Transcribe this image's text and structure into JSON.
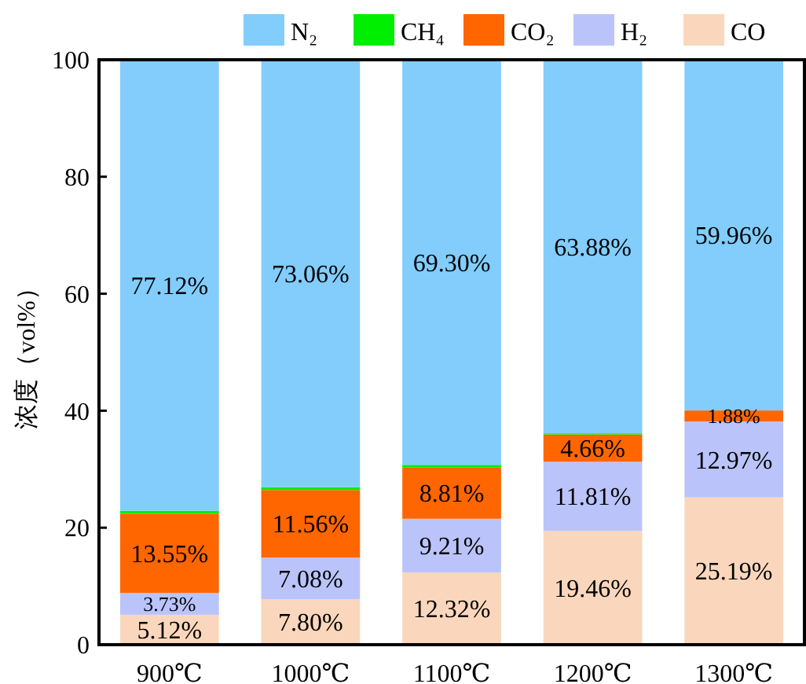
{
  "chart_data": {
    "type": "bar",
    "stacked": true,
    "ylabel": "浓度（vol%）",
    "categories": [
      "900℃",
      "1000℃",
      "1100℃",
      "1200℃",
      "1300℃"
    ],
    "series": [
      {
        "name": "CO",
        "color": "#fad7bc",
        "values": [
          5.12,
          7.8,
          12.32,
          19.46,
          25.19
        ],
        "value_labels": [
          "5.12%",
          "7.80%",
          "12.32%",
          "19.46%",
          "25.19%"
        ]
      },
      {
        "name": "H₂",
        "color": "#bac4fa",
        "values": [
          3.73,
          7.08,
          9.21,
          11.81,
          12.97
        ],
        "value_labels": [
          "3.73%",
          "7.08%",
          "9.21%",
          "11.81%",
          "12.97%"
        ]
      },
      {
        "name": "CO₂",
        "color": "#ff6600",
        "values": [
          13.55,
          11.56,
          8.81,
          4.66,
          1.88
        ],
        "value_labels": [
          "13.55%",
          "11.56%",
          "8.81%",
          "4.66%",
          "1.88%"
        ]
      },
      {
        "name": "CH₄",
        "color": "#00ee00",
        "values": [
          0.5,
          0.5,
          0.4,
          0.2,
          0
        ]
      },
      {
        "name": "N₂",
        "color": "#82cdfc",
        "values": [
          77.12,
          73.06,
          69.3,
          63.88,
          59.96
        ],
        "value_labels": [
          "77.12%",
          "73.06%",
          "69.30%",
          "63.88%",
          "59.96%"
        ]
      }
    ],
    "ylim": [
      0,
      100
    ],
    "yticks": [
      0,
      20,
      40,
      60,
      80,
      100
    ],
    "legend": "top",
    "grid": false
  }
}
